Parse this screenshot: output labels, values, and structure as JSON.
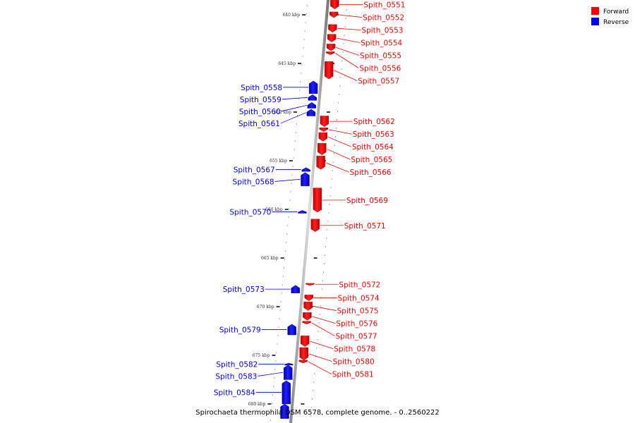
{
  "caption": "Spirochaeta thermophila DSM 6578, complete genome. - 0..2560222",
  "legend": [
    {
      "label": "Forward",
      "color": "#ff0000"
    },
    {
      "label": "Reverse",
      "color": "#0000ff"
    }
  ],
  "ticks": [
    {
      "label": "640 kbp",
      "kbp": 640
    },
    {
      "label": "645 kbp",
      "kbp": 645
    },
    {
      "label": "650 kbp",
      "kbp": 650
    },
    {
      "label": "655 kbp",
      "kbp": 655
    },
    {
      "label": "660 kbp",
      "kbp": 660
    },
    {
      "label": "665 kbp",
      "kbp": 665
    },
    {
      "label": "670 kbp",
      "kbp": 670
    },
    {
      "label": "675 kbp",
      "kbp": 675
    },
    {
      "label": "680 kbp",
      "kbp": 680
    }
  ],
  "genes": [
    {
      "name": "Spith_0551",
      "strand": "forward",
      "start_kbp": 638.5,
      "end_kbp": 639.4
    },
    {
      "name": "Spith_0552",
      "strand": "forward",
      "start_kbp": 639.7,
      "end_kbp": 640.3
    },
    {
      "name": "Spith_0553",
      "strand": "forward",
      "start_kbp": 641.0,
      "end_kbp": 641.8
    },
    {
      "name": "Spith_0554",
      "strand": "forward",
      "start_kbp": 642.0,
      "end_kbp": 642.8
    },
    {
      "name": "Spith_0555",
      "strand": "forward",
      "start_kbp": 643.0,
      "end_kbp": 643.7
    },
    {
      "name": "Spith_0556",
      "strand": "forward",
      "start_kbp": 643.8,
      "end_kbp": 644.1
    },
    {
      "name": "Spith_0557",
      "strand": "forward",
      "start_kbp": 644.8,
      "end_kbp": 646.6
    },
    {
      "name": "Spith_0558",
      "strand": "reverse",
      "start_kbp": 646.8,
      "end_kbp": 648.1
    },
    {
      "name": "Spith_0559",
      "strand": "reverse",
      "start_kbp": 648.2,
      "end_kbp": 648.8
    },
    {
      "name": "Spith_0560",
      "strand": "reverse",
      "start_kbp": 649.0,
      "end_kbp": 649.6
    },
    {
      "name": "Spith_0561",
      "strand": "reverse",
      "start_kbp": 649.7,
      "end_kbp": 650.4
    },
    {
      "name": "Spith_0562",
      "strand": "forward",
      "start_kbp": 650.4,
      "end_kbp": 651.5
    },
    {
      "name": "Spith_0563",
      "strand": "forward",
      "start_kbp": 651.6,
      "end_kbp": 652.0
    },
    {
      "name": "Spith_0564",
      "strand": "forward",
      "start_kbp": 652.1,
      "end_kbp": 653.0
    },
    {
      "name": "Spith_0565",
      "strand": "forward",
      "start_kbp": 653.2,
      "end_kbp": 654.4
    },
    {
      "name": "Spith_0566",
      "strand": "forward",
      "start_kbp": 654.5,
      "end_kbp": 655.9
    },
    {
      "name": "Spith_0567",
      "strand": "reverse",
      "start_kbp": 655.7,
      "end_kbp": 656.1
    },
    {
      "name": "Spith_0568",
      "strand": "reverse",
      "start_kbp": 656.2,
      "end_kbp": 657.6
    },
    {
      "name": "Spith_0569",
      "strand": "forward",
      "start_kbp": 657.8,
      "end_kbp": 660.3
    },
    {
      "name": "Spith_0570",
      "strand": "reverse",
      "start_kbp": 660.1,
      "end_kbp": 660.4
    },
    {
      "name": "Spith_0571",
      "strand": "forward",
      "start_kbp": 661.0,
      "end_kbp": 662.3
    },
    {
      "name": "Spith_0572",
      "strand": "forward",
      "start_kbp": 667.6,
      "end_kbp": 667.8
    },
    {
      "name": "Spith_0573",
      "strand": "reverse",
      "start_kbp": 667.8,
      "end_kbp": 668.6
    },
    {
      "name": "Spith_0574",
      "strand": "forward",
      "start_kbp": 668.8,
      "end_kbp": 669.4
    },
    {
      "name": "Spith_0575",
      "strand": "forward",
      "start_kbp": 669.5,
      "end_kbp": 670.4
    },
    {
      "name": "Spith_0576",
      "strand": "forward",
      "start_kbp": 670.6,
      "end_kbp": 671.4
    },
    {
      "name": "Spith_0577",
      "strand": "forward",
      "start_kbp": 671.5,
      "end_kbp": 671.8
    },
    {
      "name": "Spith_0579",
      "strand": "reverse",
      "start_kbp": 671.8,
      "end_kbp": 672.9
    },
    {
      "name": "Spith_0578",
      "strand": "forward",
      "start_kbp": 673.0,
      "end_kbp": 674.1
    },
    {
      "name": "Spith_0582",
      "strand": "reverse",
      "start_kbp": 675.8,
      "end_kbp": 676.0
    },
    {
      "name": "Spith_0580",
      "strand": "forward",
      "start_kbp": 674.2,
      "end_kbp": 675.5
    },
    {
      "name": "Spith_0581",
      "strand": "forward",
      "start_kbp": 675.5,
      "end_kbp": 675.8
    },
    {
      "name": "Spith_0583",
      "strand": "reverse",
      "start_kbp": 676.0,
      "end_kbp": 677.5
    },
    {
      "name": "Spith_0584",
      "strand": "reverse",
      "start_kbp": 677.6,
      "end_kbp": 680.0
    },
    {
      "name": "",
      "strand": "reverse",
      "start_kbp": 680.0,
      "end_kbp": 681.5
    }
  ]
}
